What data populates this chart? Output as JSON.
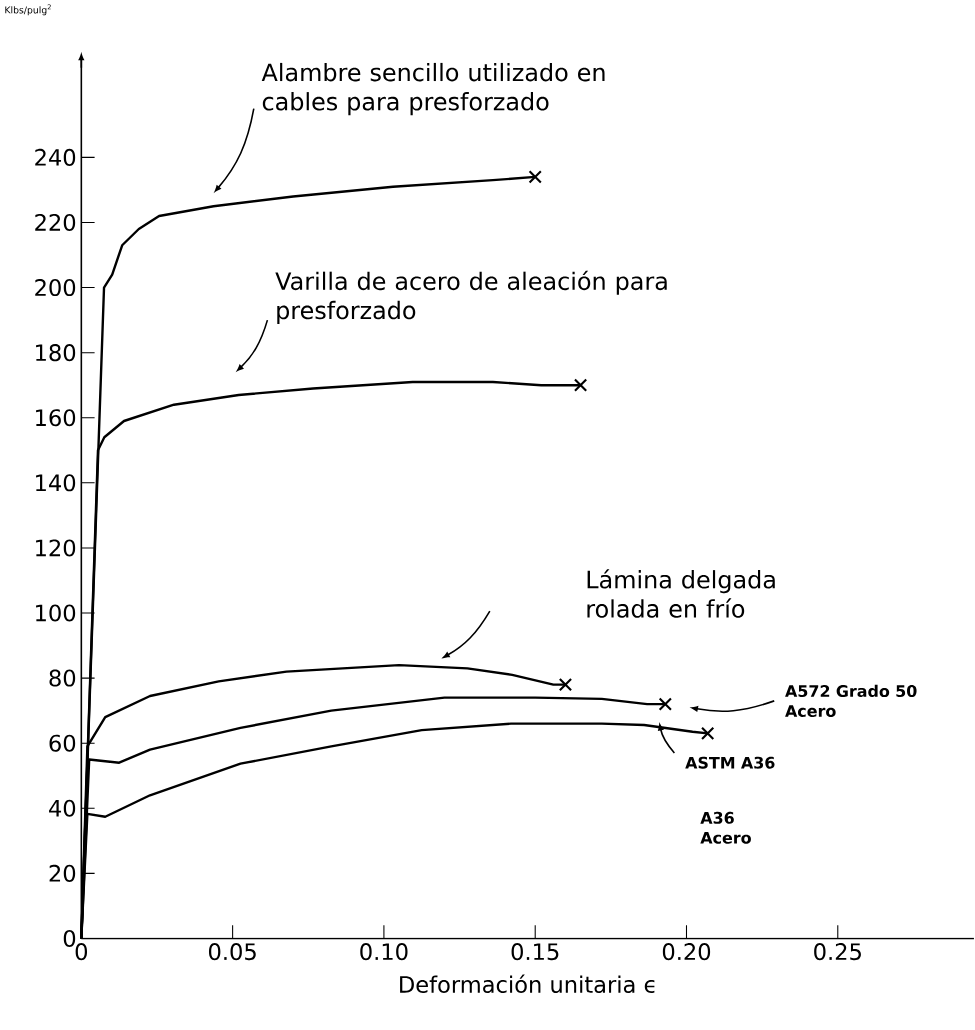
{
  "chart_data": {
    "type": "line",
    "xlabel": "Deformación unitaria ϵ",
    "ylabel": "Klbs/pulg$^{2}$",
    "xlim": [
      0,
      0.295
    ],
    "ylim": [
      0,
      270
    ],
    "xticks": [
      {
        "value": 0,
        "label": "0"
      },
      {
        "value": 0.05,
        "label": "0.05"
      },
      {
        "value": 0.1,
        "label": "0.10"
      },
      {
        "value": 0.15,
        "label": "0.15"
      },
      {
        "value": 0.2,
        "label": "0.20"
      },
      {
        "value": 0.25,
        "label": "0.25"
      }
    ],
    "yticks": [
      0,
      20,
      40,
      60,
      80,
      100,
      120,
      140,
      160,
      180,
      200,
      220,
      240
    ],
    "series": [
      {
        "name": "Alambre sencillo utilizado en cables para presforzado",
        "color": "#000000",
        "x": [
          0,
          0.0075,
          0.0102,
          0.0135,
          0.019,
          0.0257,
          0.0437,
          0.07,
          0.103,
          0.136,
          0.15
        ],
        "values": [
          0,
          200,
          204,
          213,
          218,
          222,
          225,
          228,
          231,
          233,
          234
        ]
      },
      {
        "name": "Varilla de acero de aleación para presforzado",
        "color": "#000000",
        "x": [
          0,
          0.0055,
          0.0076,
          0.0141,
          0.0306,
          0.052,
          0.0766,
          0.1095,
          0.136,
          0.152,
          0.165
        ],
        "values": [
          0,
          150,
          154,
          159,
          164,
          167,
          169,
          171,
          171,
          170,
          170
        ]
      },
      {
        "name": "Lámina delgada rolada en frío",
        "color": "#000000",
        "x": [
          0,
          0.002,
          0.0079,
          0.0227,
          0.0454,
          0.0678,
          0.105,
          0.1276,
          0.1424,
          0.156,
          0.16
        ],
        "values": [
          0,
          59,
          68,
          74.5,
          79,
          82,
          84,
          83,
          81,
          78,
          78
        ]
      },
      {
        "name": "A572 Grado 50 Acero",
        "color": "#000000",
        "x": [
          0,
          0.0026,
          0.0125,
          0.0227,
          0.0526,
          0.0826,
          0.12,
          0.15,
          0.172,
          0.187,
          0.193
        ],
        "values": [
          0,
          55,
          54,
          58,
          64.7,
          70,
          74,
          74,
          73.6,
          72,
          72
        ]
      },
      {
        "name": "ASTM A36",
        "color": "#000000",
        "x": [
          0,
          0.002,
          0.0079,
          0.0227,
          0.0526,
          0.0826,
          0.1125,
          0.142,
          0.172,
          0.186,
          0.202,
          0.207
        ],
        "values": [
          0,
          38.3,
          37.4,
          44,
          53.7,
          59,
          64,
          66,
          66,
          65.6,
          63.5,
          63
        ]
      },
      {
        "type": "scatter",
        "marker": "cross",
        "color": "#000000",
        "x": [
          0.15,
          0.165,
          0.16,
          0.193,
          0.207
        ],
        "values": [
          234,
          170,
          78,
          72,
          63
        ]
      }
    ],
    "annotations": [
      "A36 Acero"
    ]
  }
}
